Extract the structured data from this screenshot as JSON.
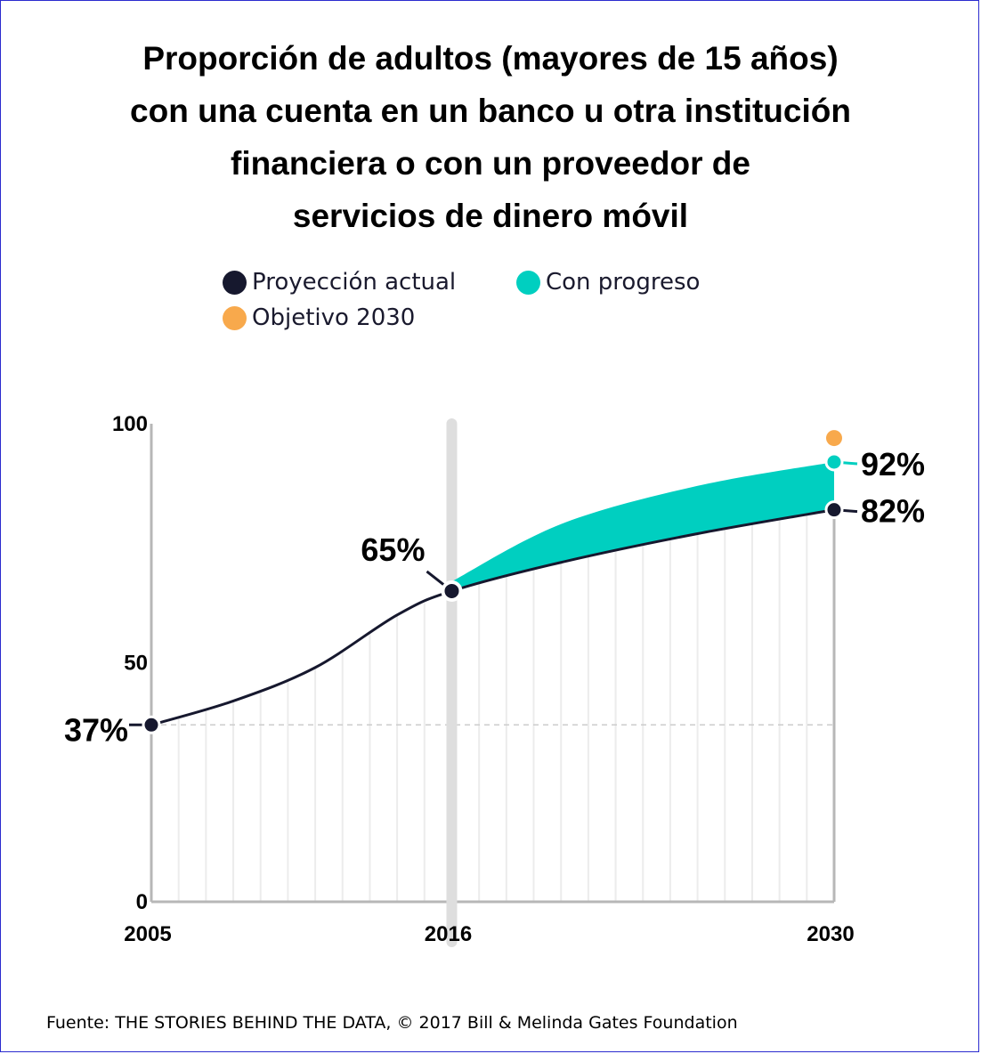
{
  "title_lines": [
    "Proporción de adultos (mayores de 15 años)",
    "con una cuenta en un banco u otra institución",
    "financiera o con un proveedor de",
    "servicios de dinero móvil"
  ],
  "legend": [
    {
      "label": "Proyección actual",
      "color": "#16182e"
    },
    {
      "label": "Con progreso",
      "color": "#00cfc0"
    },
    {
      "label": "Objetivo 2030",
      "color": "#f8a94c"
    }
  ],
  "source": "Fuente: THE STORIES BEHIND THE DATA, © 2017 Bill & Melinda Gates Foundation",
  "chart_data": {
    "type": "line",
    "xlim": [
      2005,
      2030
    ],
    "ylim": [
      0,
      100
    ],
    "x_ticks": [
      "2005",
      "2016",
      "2030"
    ],
    "y_ticks": [
      "0",
      "50",
      "100"
    ],
    "grid": true,
    "legend_position": "top",
    "series": [
      {
        "name": "Proyección actual",
        "color": "#16182e",
        "x": [
          2005,
          2008,
          2011,
          2014,
          2016,
          2020,
          2025,
          2030
        ],
        "values": [
          37,
          42,
          49,
          60,
          65,
          71,
          77,
          82
        ]
      },
      {
        "name": "Con progreso",
        "color": "#00cfc0",
        "x": [
          2016,
          2020,
          2025,
          2030
        ],
        "values": [
          67,
          79,
          87,
          92
        ]
      },
      {
        "name": "Objetivo 2030",
        "color": "#f8a94c",
        "x": [
          2030
        ],
        "values": [
          97
        ]
      }
    ],
    "annotations": [
      "37%",
      "65%",
      "82%",
      "92%"
    ]
  }
}
